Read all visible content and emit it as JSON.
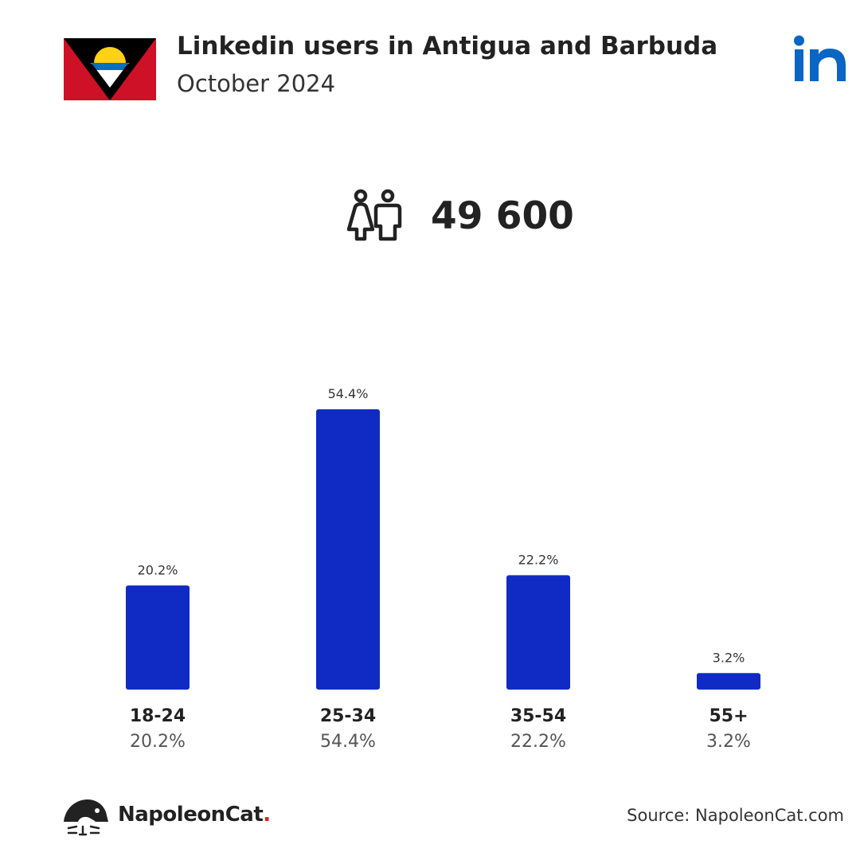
{
  "header": {
    "title": "Linkedin users in Antigua and Barbuda",
    "subtitle": "October 2024"
  },
  "icons": {
    "flag": "antigua-and-barbuda-flag",
    "brand_logo": "linkedin-logo",
    "total": "people-icon",
    "footer": "napoleoncat-logo"
  },
  "total_users": "49 600",
  "colors": {
    "bar": "#0f2bc4",
    "linkedin": "#0a66c2",
    "brand_dot": "#e02020"
  },
  "chart_data": {
    "type": "bar",
    "categories": [
      "18-24",
      "25-34",
      "35-54",
      "55+"
    ],
    "values": [
      20.2,
      54.4,
      22.2,
      3.2
    ],
    "value_labels": [
      "20.2%",
      "54.4%",
      "22.2%",
      "3.2%"
    ],
    "ylim": [
      0,
      54.4
    ],
    "grid": false,
    "legend": "none"
  },
  "footer": {
    "brand": "NapoleonCat",
    "brand_dot": ".",
    "source": "Source: NapoleonCat.com"
  }
}
